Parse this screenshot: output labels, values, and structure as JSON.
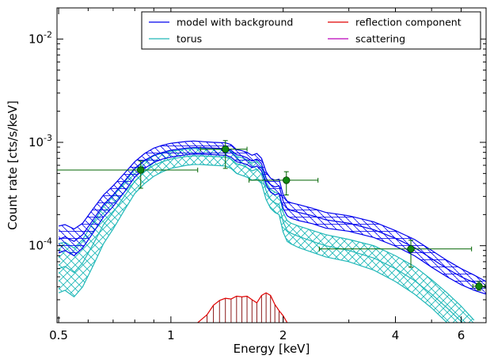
{
  "chart_data": {
    "type": "line",
    "xlabel": "Energy [keV]",
    "ylabel": "Count rate [cts/s/keV]",
    "x_scale": "log",
    "y_scale": "log",
    "xlim": [
      0.495,
      7.0
    ],
    "ylim": [
      1.8e-05,
      0.02
    ],
    "x_ticks": [
      0.5,
      1,
      2,
      4,
      6
    ],
    "x_tick_labels": [
      "0.5",
      "1",
      "2",
      "4",
      "6"
    ],
    "y_tick_labels": [
      {
        "value": 0.0001,
        "mantissa": "10",
        "exponent": "-4"
      },
      {
        "value": 0.001,
        "mantissa": "10",
        "exponent": "-3"
      },
      {
        "value": 0.01,
        "mantissa": "10",
        "exponent": "-2"
      }
    ],
    "grid": false,
    "legend_position": "top-right",
    "colors": {
      "model": "#0000ee",
      "torus": "#20b8b8",
      "reflection": "#e00000",
      "reflection_hatch": "#8b1a1a",
      "scattering": "#bb00bb",
      "data": "#006400",
      "data_fill": "#118811"
    },
    "legend": [
      {
        "label": "model with background",
        "color": "#0000ee"
      },
      {
        "label": "torus",
        "color": "#20b8b8"
      },
      {
        "label": "reflection component",
        "color": "#e00000"
      },
      {
        "label": "scattering",
        "color": "#bb00bb"
      }
    ],
    "series": [
      {
        "name": "model with background",
        "x": [
          0.5,
          0.52,
          0.55,
          0.58,
          0.62,
          0.66,
          0.7,
          0.75,
          0.8,
          0.85,
          0.9,
          0.95,
          1.0,
          1.05,
          1.1,
          1.15,
          1.2,
          1.3,
          1.4,
          1.45,
          1.5,
          1.55,
          1.6,
          1.65,
          1.7,
          1.75,
          1.8,
          1.85,
          1.9,
          1.95,
          2.0,
          2.05,
          2.1,
          2.2,
          2.4,
          2.6,
          3.0,
          3.5,
          4.0,
          4.5,
          5.0,
          5.5,
          6.0,
          6.5,
          7.0
        ],
        "upper": [
          0.000155,
          0.00016,
          0.000145,
          0.000165,
          0.00023,
          0.00031,
          0.00038,
          0.0005,
          0.00065,
          0.00078,
          0.00088,
          0.00094,
          0.00098,
          0.001,
          0.00102,
          0.00103,
          0.00102,
          0.001,
          0.00099,
          0.00095,
          0.00085,
          0.00083,
          0.0008,
          0.00075,
          0.00078,
          0.0007,
          0.00052,
          0.00045,
          0.00043,
          0.00044,
          0.00031,
          0.00027,
          0.00026,
          0.00025,
          0.00023,
          0.00021,
          0.000195,
          0.00017,
          0.00014,
          0.000115,
          9e-05,
          7.2e-05,
          6e-05,
          5.2e-05,
          4.5e-05
        ],
        "median": [
          0.000115,
          0.000122,
          0.00011,
          0.000128,
          0.00018,
          0.00025,
          0.00031,
          0.00042,
          0.00056,
          0.00067,
          0.00075,
          0.0008,
          0.00084,
          0.00086,
          0.00088,
          0.00089,
          0.00089,
          0.00088,
          0.00087,
          0.00084,
          0.00076,
          0.00074,
          0.00071,
          0.00066,
          0.00069,
          0.00062,
          0.00045,
          0.00039,
          0.00037,
          0.00038,
          0.00027,
          0.00023,
          0.00022,
          0.00021,
          0.000195,
          0.000178,
          0.000165,
          0.000143,
          0.000118,
          9.6e-05,
          7.5e-05,
          6e-05,
          5e-05,
          4.4e-05,
          3.9e-05
        ],
        "lower": [
          8.5e-05,
          9e-05,
          8e-05,
          9.5e-05,
          0.000135,
          0.00019,
          0.00024,
          0.00033,
          0.00046,
          0.00056,
          0.00064,
          0.00069,
          0.00072,
          0.00074,
          0.00076,
          0.00077,
          0.00077,
          0.00076,
          0.00075,
          0.00072,
          0.00065,
          0.00063,
          0.00061,
          0.00057,
          0.00059,
          0.00053,
          0.00039,
          0.00033,
          0.00031,
          0.00032,
          0.00023,
          0.000195,
          0.000185,
          0.000175,
          0.000163,
          0.000148,
          0.000138,
          0.00012,
          9.9e-05,
          8e-05,
          6.2e-05,
          5e-05,
          4.2e-05,
          3.7e-05,
          3.4e-05
        ]
      },
      {
        "name": "torus",
        "x": [
          0.5,
          0.52,
          0.55,
          0.58,
          0.62,
          0.66,
          0.7,
          0.75,
          0.8,
          0.85,
          0.9,
          0.95,
          1.0,
          1.05,
          1.1,
          1.15,
          1.2,
          1.3,
          1.4,
          1.45,
          1.5,
          1.55,
          1.6,
          1.65,
          1.7,
          1.75,
          1.8,
          1.85,
          1.9,
          1.95,
          2.0,
          2.05,
          2.1,
          2.2,
          2.4,
          2.6,
          3.0,
          3.5,
          4.0,
          4.5,
          5.0,
          5.5,
          6.0,
          6.5
        ],
        "upper": [
          0.000105,
          0.000108,
          9.5e-05,
          0.000115,
          0.00017,
          0.00024,
          0.0003,
          0.00041,
          0.00055,
          0.00066,
          0.00074,
          0.00079,
          0.00082,
          0.00084,
          0.00086,
          0.00087,
          0.00087,
          0.00086,
          0.00085,
          0.00082,
          0.00073,
          0.00071,
          0.00068,
          0.00063,
          0.00066,
          0.00058,
          0.00041,
          0.00035,
          0.00033,
          0.00032,
          0.00021,
          0.000175,
          0.000165,
          0.000155,
          0.00014,
          0.000128,
          0.000115,
          0.0001,
          8e-05,
          6.3e-05,
          4.7e-05,
          3.5e-05,
          2.6e-05,
          1.9e-05
        ],
        "median": [
          6e-05,
          6.3e-05,
          5.5e-05,
          6.8e-05,
          0.000105,
          0.00016,
          0.00021,
          0.0003,
          0.00042,
          0.00052,
          0.0006,
          0.00065,
          0.00069,
          0.00071,
          0.00073,
          0.00074,
          0.00074,
          0.00073,
          0.00072,
          0.00069,
          0.00062,
          0.0006,
          0.00057,
          0.00053,
          0.00055,
          0.00049,
          0.00034,
          0.00028,
          0.00026,
          0.00025,
          0.00017,
          0.00014,
          0.000132,
          0.000123,
          0.00011,
          0.0001,
          9e-05,
          7.6e-05,
          6e-05,
          4.6e-05,
          3.4e-05,
          2.5e-05,
          1.85e-05,
          1.4e-05
        ],
        "lower": [
          3.5e-05,
          3.7e-05,
          3.2e-05,
          4e-05,
          6.5e-05,
          0.000105,
          0.000145,
          0.00022,
          0.00032,
          0.0004,
          0.00047,
          0.00052,
          0.00056,
          0.00058,
          0.0006,
          0.00061,
          0.00061,
          0.0006,
          0.00059,
          0.00056,
          0.0005,
          0.00048,
          0.00046,
          0.00043,
          0.00044,
          0.0004,
          0.00028,
          0.00023,
          0.00021,
          0.0002,
          0.000135,
          0.00011,
          0.000104,
          9.6e-05,
          8.6e-05,
          7.8e-05,
          7e-05,
          5.8e-05,
          4.5e-05,
          3.4e-05,
          2.5e-05,
          1.8e-05,
          1.3e-05,
          1e-05
        ]
      },
      {
        "name": "reflection component",
        "x": [
          1.18,
          1.25,
          1.3,
          1.35,
          1.4,
          1.45,
          1.5,
          1.55,
          1.6,
          1.65,
          1.7,
          1.75,
          1.8,
          1.85,
          1.9,
          1.95,
          2.0,
          2.05
        ],
        "upper": [
          1.8e-05,
          2.15e-05,
          2.65e-05,
          2.95e-05,
          3.1e-05,
          3.05e-05,
          3.25e-05,
          3.2e-05,
          3.25e-05,
          3e-05,
          2.8e-05,
          3.3e-05,
          3.5e-05,
          3.3e-05,
          2.7e-05,
          2.35e-05,
          2.1e-05,
          1.8e-05
        ],
        "lower": [
          1.7e-05,
          1.8e-05,
          1.95e-05,
          2.05e-05,
          2.1e-05,
          2.1e-05,
          2.2e-05,
          2.2e-05,
          2.2e-05,
          2.1e-05,
          2e-05,
          2.2e-05,
          2.3e-05,
          2.2e-05,
          1.95e-05,
          1.85e-05,
          1.75e-05,
          1.7e-05
        ]
      }
    ],
    "data_points": [
      {
        "x": 0.83,
        "y": 0.00054,
        "xerr_low": 0.495,
        "xerr_high": 1.18,
        "yerr_low": 0.00036,
        "yerr_high": 0.00066
      },
      {
        "x": 1.4,
        "y": 0.00086,
        "xerr_low": 1.2,
        "xerr_high": 1.6,
        "yerr_low": 0.00056,
        "yerr_high": 0.00104
      },
      {
        "x": 2.04,
        "y": 0.00043,
        "xerr_low": 1.62,
        "xerr_high": 2.48,
        "yerr_low": 0.00031,
        "yerr_high": 0.00052
      },
      {
        "x": 4.4,
        "y": 9.3e-05,
        "xerr_low": 2.5,
        "xerr_high": 6.4,
        "yerr_low": 6.2e-05,
        "yerr_high": 0.000113
      },
      {
        "x": 6.7,
        "y": 4.05e-05,
        "xerr_low": 6.45,
        "xerr_high": 6.95,
        "yerr_low": 3.7e-05,
        "yerr_high": 4.5e-05
      }
    ]
  }
}
